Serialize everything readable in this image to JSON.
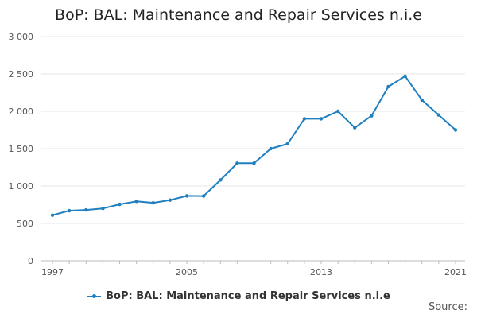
{
  "chart_data": {
    "type": "line",
    "title": "BoP: BAL: Maintenance and Repair Services n.i.e",
    "x": [
      1997,
      1998,
      1999,
      2000,
      2001,
      2002,
      2003,
      2004,
      2005,
      2006,
      2007,
      2008,
      2009,
      2010,
      2011,
      2012,
      2013,
      2014,
      2015,
      2016,
      2017,
      2018,
      2019,
      2020,
      2021
    ],
    "series": [
      {
        "name": "BoP: BAL: Maintenance and Repair Services n.i.e",
        "values": [
          610,
          670,
          680,
          700,
          755,
          795,
          775,
          812,
          868,
          866,
          1080,
          1305,
          1305,
          1500,
          1565,
          1900,
          1900,
          2000,
          1780,
          1940,
          2330,
          2470,
          2150,
          1950,
          1750
        ]
      }
    ],
    "x_ticks": [
      "1997",
      "2005",
      "2013",
      "2021"
    ],
    "y_ticks": [
      "0",
      "500",
      "1 000",
      "1 500",
      "2 000",
      "2 500",
      "3 000"
    ],
    "ylim": [
      0,
      3000
    ],
    "xlim": [
      1997,
      2021
    ],
    "grid": "horizontal",
    "legend_position": "bottom",
    "colors": {
      "series": "#1f7fbf"
    }
  },
  "footer": {
    "source": "Source:"
  }
}
